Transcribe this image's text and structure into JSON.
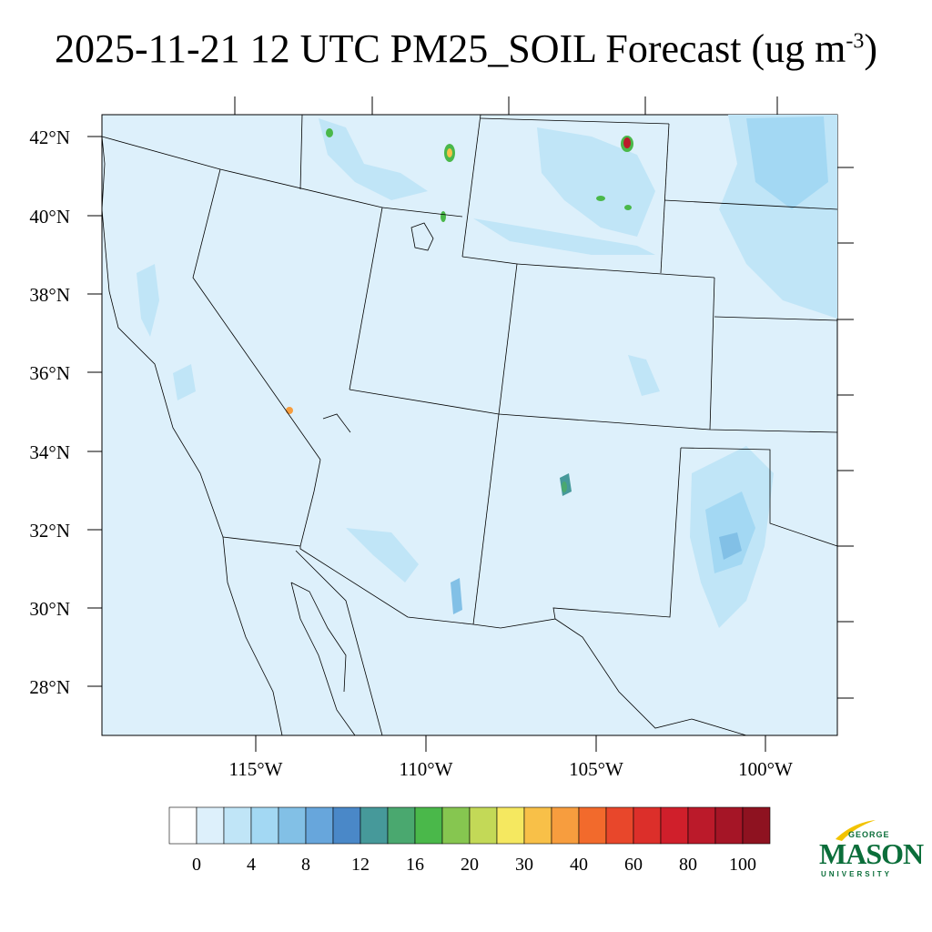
{
  "title": {
    "main": "2025-11-21 12 UTC PM25_SOIL Forecast (ug m",
    "exponent": "-3",
    "close": ")"
  },
  "map": {
    "lat_labels": [
      "42°N",
      "40°N",
      "38°N",
      "36°N",
      "34°N",
      "32°N",
      "30°N",
      "28°N"
    ],
    "lon_labels": [
      "115°W",
      "110°W",
      "105°W",
      "100°W"
    ],
    "background_color": "#ddf0fb",
    "border_color": "#000000"
  },
  "colorbar": {
    "colors": [
      "#ffffff",
      "#ddf0fb",
      "#c0e5f7",
      "#a3d8f3",
      "#82c0e6",
      "#67a6dc",
      "#4a88c8",
      "#46999a",
      "#4aa86f",
      "#4ab84a",
      "#86c650",
      "#c3d957",
      "#f5e860",
      "#f8c048",
      "#f79d3e",
      "#f26a2c",
      "#e8472b",
      "#dc2f2a",
      "#d01f2b",
      "#bb1a2a",
      "#a51526",
      "#8e1220"
    ],
    "labels": [
      "0",
      "4",
      "8",
      "12",
      "16",
      "20",
      "30",
      "40",
      "60",
      "80",
      "100"
    ]
  },
  "logo": {
    "george": "GEORGE",
    "mason": "MASON",
    "university": "UNIVERSITY",
    "brand_color": "#0b6e3a",
    "accent_color": "#f2c300"
  }
}
